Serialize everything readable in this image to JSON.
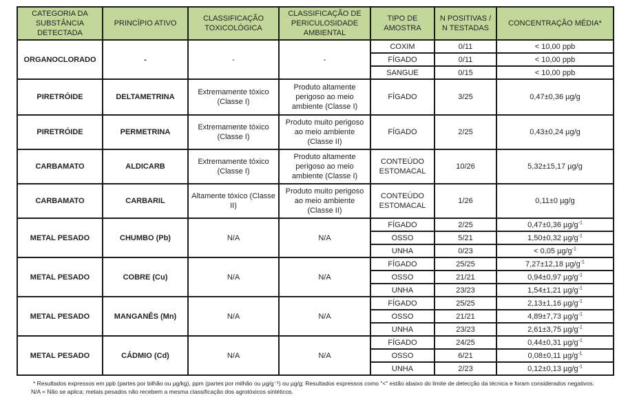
{
  "headers": [
    "CATEGORIA DA SUBSTÂNCIA DETECTADA",
    "PRINCÍPIO ATIVO",
    "CLASSIFICAÇÃO TOXICOLÓGICA",
    "CLASSIFICAÇÃO DE PERICULOSIDADE AMBIENTAL",
    "TIPO DE AMOSTRA",
    "N POSITIVAS / N TESTADAS",
    "CONCENTRAÇÃO MÉDIA*"
  ],
  "groups": [
    {
      "categoria": "ORGANOCLORADO",
      "principio": "-",
      "toxico": "-",
      "ambiental": "-",
      "rows": [
        {
          "amostra": "COXIM",
          "n": "0/11",
          "conc": "< 10,00 ppb",
          "sup": ""
        },
        {
          "amostra": "FÍGADO",
          "n": "0/11",
          "conc": "< 10,00 ppb",
          "sup": ""
        },
        {
          "amostra": "SANGUE",
          "n": "0/15",
          "conc": "< 10,00 ppb",
          "sup": ""
        }
      ]
    },
    {
      "categoria": "PIRETRÓIDE",
      "principio": "DELTAMETRINA",
      "toxico": "Extremamente tóxico (Classe I)",
      "ambiental": "Produto altamente perigoso ao meio ambiente (Classe I)",
      "rows": [
        {
          "amostra": "FÍGADO",
          "n": "3/25",
          "conc": "0,47±0,36 µg/g",
          "sup": ""
        }
      ]
    },
    {
      "categoria": "PIRETRÓIDE",
      "principio": "PERMETRINA",
      "toxico": "Extremamente tóxico (Classe I)",
      "ambiental": "Produto muito perigoso ao meio ambiente (Classe II)",
      "rows": [
        {
          "amostra": "FÍGADO",
          "n": "2/25",
          "conc": "0,43±0,24 µg/g",
          "sup": ""
        }
      ]
    },
    {
      "categoria": "CARBAMATO",
      "principio": "ALDICARB",
      "toxico": "Extremamente tóxico (Classe I)",
      "ambiental": "Produto altamente perigoso ao meio ambiente (Classe I)",
      "rows": [
        {
          "amostra": "CONTEÚDO ESTOMACAL",
          "n": "10/26",
          "conc": "5,32±15,17 µg/g",
          "sup": ""
        }
      ]
    },
    {
      "categoria": "CARBAMATO",
      "principio": "CARBARIL",
      "toxico": "Altamente tóxico (Classe II)",
      "ambiental": "Produto muito perigoso ao meio ambiente (Classe II)",
      "rows": [
        {
          "amostra": "CONTEÚDO ESTOMACAL",
          "n": "1/26",
          "conc": "0,11±0 µg/g",
          "sup": ""
        }
      ]
    },
    {
      "categoria": "METAL PESADO",
      "principio": "CHUMBO (Pb)",
      "toxico": "N/A",
      "ambiental": "N/A",
      "rows": [
        {
          "amostra": "FÍGADO",
          "n": "2/25",
          "conc": "0,47±0,36 µg/g",
          "sup": "-1"
        },
        {
          "amostra": "OSSO",
          "n": "5/21",
          "conc": "1,50±0,32 µg/g",
          "sup": "-1"
        },
        {
          "amostra": "UNHA",
          "n": "0/23",
          "conc": "< 0,05 µg/g",
          "sup": "-1"
        }
      ]
    },
    {
      "categoria": "METAL PESADO",
      "principio": "COBRE (Cu)",
      "toxico": "N/A",
      "ambiental": "N/A",
      "rows": [
        {
          "amostra": "FÍGADO",
          "n": "25/25",
          "conc": "7,27±12,18 µg/g",
          "sup": "-1"
        },
        {
          "amostra": "OSSO",
          "n": "21/21",
          "conc": "0,94±0,97 µg/g",
          "sup": "-1"
        },
        {
          "amostra": "UNHA",
          "n": "23/23",
          "conc": "1,54±1,21 µg/g",
          "sup": "-1"
        }
      ]
    },
    {
      "categoria": "METAL PESADO",
      "principio": "MANGANÊS (Mn)",
      "toxico": "N/A",
      "ambiental": "N/A",
      "rows": [
        {
          "amostra": "FÍGADO",
          "n": "25/25",
          "conc": "2,13±1,16 µg/g",
          "sup": "-1"
        },
        {
          "amostra": "OSSO",
          "n": "21/21",
          "conc": "4,89±7,73 µg/g",
          "sup": "-1"
        },
        {
          "amostra": "UNHA",
          "n": "23/23",
          "conc": "2,61±3,75 µg/g",
          "sup": "-1"
        }
      ]
    },
    {
      "categoria": "METAL PESADO",
      "principio": "CÁDMIO (Cd)",
      "toxico": "N/A",
      "ambiental": "N/A",
      "rows": [
        {
          "amostra": "FÍGADO",
          "n": "24/25",
          "conc": "0,44±0,31 µg/g",
          "sup": "-1"
        },
        {
          "amostra": "OSSO",
          "n": "6/21",
          "conc": "0,08±0,11 µg/g",
          "sup": "-1"
        },
        {
          "amostra": "UNHA",
          "n": "2/23",
          "conc": "0,12±0,13 µg/g",
          "sup": "-1"
        }
      ]
    }
  ],
  "footnotes": [
    "* Resultados expressos em ppb (partes por bilhão ou µg/kg), ppm (partes por milhão ou µg/g⁻¹) ou µg/g; Resultados expressos como \"<\" estão abaixo do limite de detecção da técnica e foram considerados negativos.",
    "N/A = Não se aplica; metais pesados não recebem a mesma classificação dos agrotóxicos sintéticos."
  ]
}
